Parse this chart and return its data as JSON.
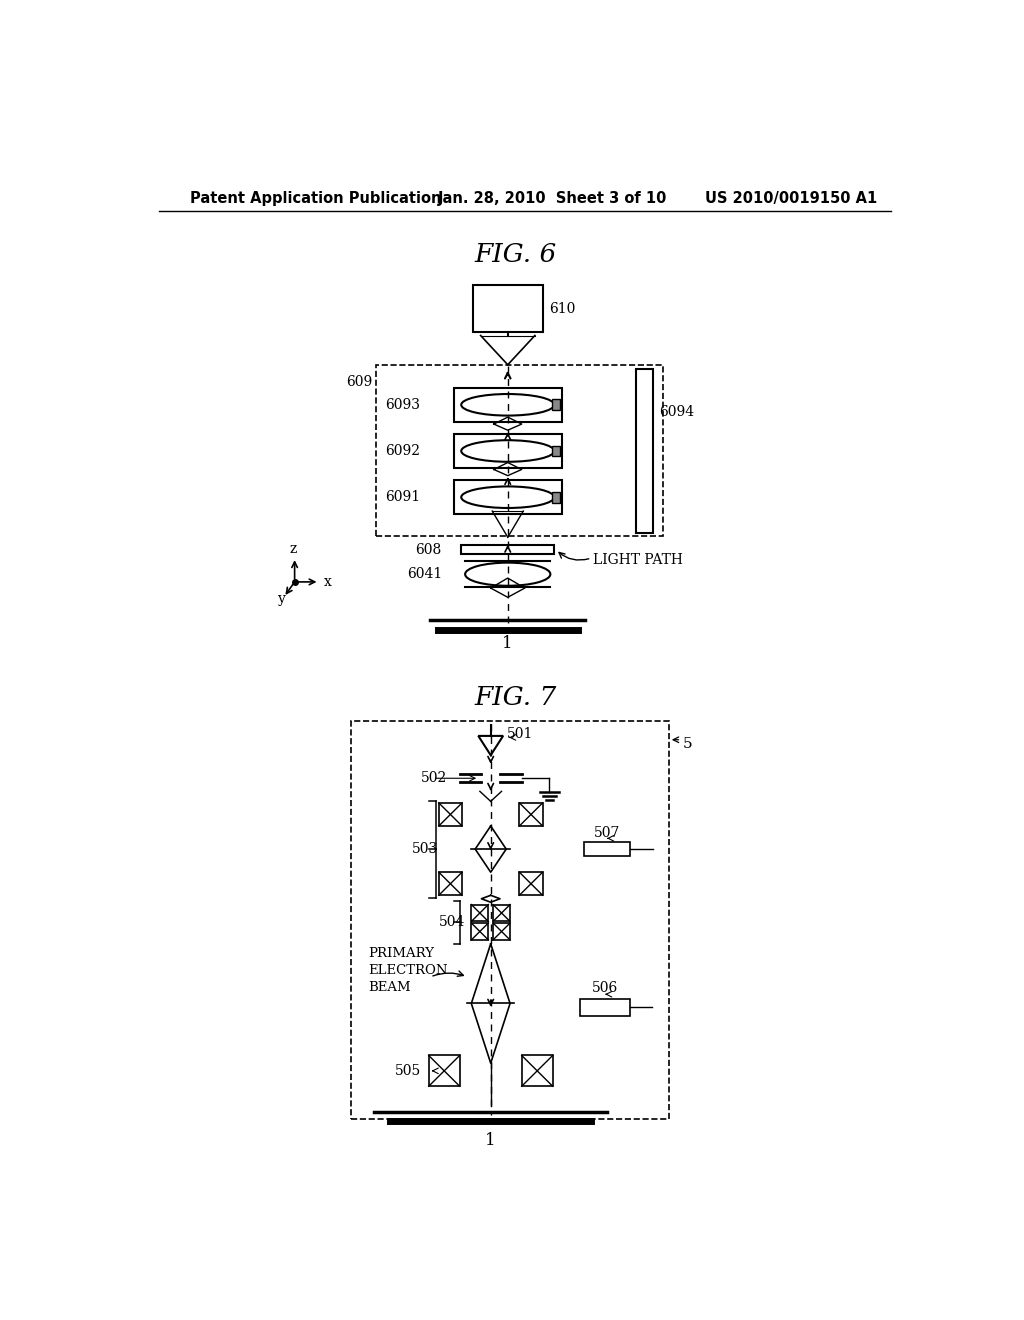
{
  "bg_color": "#ffffff",
  "header_left": "Patent Application Publication",
  "header_center": "Jan. 28, 2010  Sheet 3 of 10",
  "header_right": "US 2010/0019150 A1",
  "fig6_title": "FIG. 6",
  "fig7_title": "FIG. 7"
}
